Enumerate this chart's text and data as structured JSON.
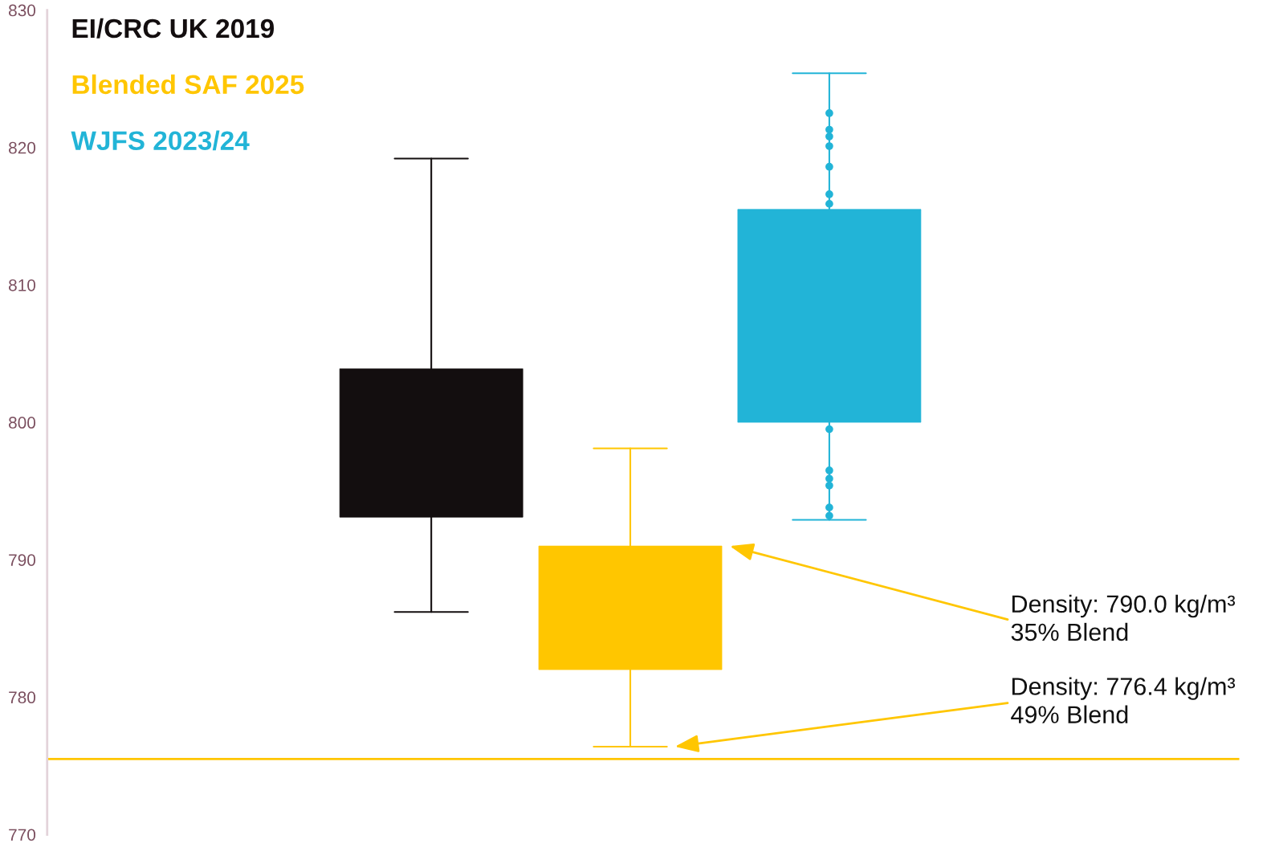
{
  "chart_data": {
    "type": "box",
    "categories": [
      null
    ],
    "series": [
      {
        "name": "EI/CRC UK 2019",
        "color": "#130e0f",
        "boxes": [
          {
            "low": 786.2,
            "q1": 793.1,
            "q3": 803.9,
            "high": 819.2
          }
        ]
      },
      {
        "name": "Blended SAF 2025",
        "color": "#ffc600",
        "boxes": [
          {
            "low": 776.4,
            "q1": 782.0,
            "q3": 791.0,
            "high": 798.1
          }
        ]
      },
      {
        "name": "WJFS 2023/24",
        "color": "#22b4d7",
        "boxes": [
          {
            "low": 792.9,
            "q1": 800.0,
            "q3": 815.5,
            "high": 825.4,
            "outliers": [
              822.5,
              821.3,
              820.8,
              820.1,
              818.6,
              816.6,
              815.9,
              799.5,
              796.5,
              795.9,
              795.4,
              793.8,
              793.2
            ]
          }
        ]
      }
    ],
    "ylim": [
      770,
      830
    ],
    "yticks": [
      770,
      780,
      790,
      800,
      810,
      820,
      830
    ],
    "ref_lines": [
      {
        "axis": "y",
        "value": 775.5,
        "color": "#ffc600"
      }
    ],
    "annotations": [
      "Density: 790.0 kg/m³\n35% Blend",
      "Density: 776.4 kg/m³\n49% Blend"
    ],
    "legend": "top left",
    "grid": false
  }
}
